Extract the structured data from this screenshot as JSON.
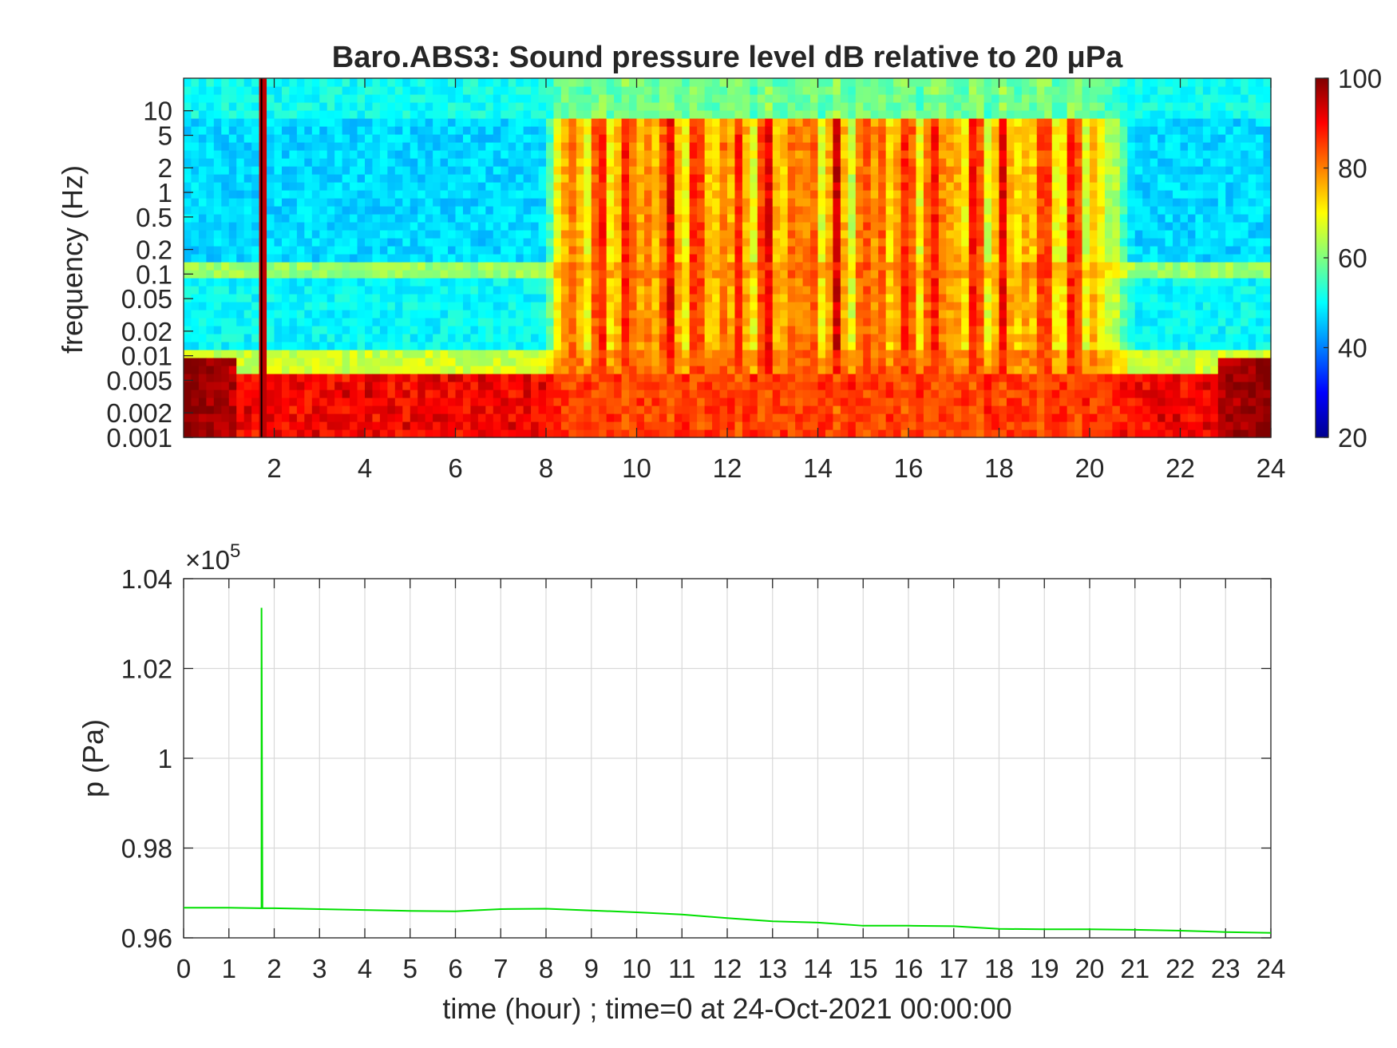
{
  "chart_data": [
    {
      "type": "heatmap",
      "title": "Baro.ABS3: Sound pressure level dB relative to 20 μPa",
      "ylabel": "frequency (Hz)",
      "xlabel": "",
      "x_ticks": [
        "2",
        "4",
        "6",
        "8",
        "10",
        "12",
        "14",
        "16",
        "18",
        "20",
        "22",
        "24"
      ],
      "y_ticks": [
        "10",
        "5",
        "2",
        "1",
        "0.5",
        "0.2",
        "0.1",
        "0.05",
        "0.02",
        "0.01",
        "0.005",
        "0.002",
        "0.001"
      ],
      "y_scale": "log",
      "xlim": [
        0,
        24
      ],
      "ylim": [
        0.001,
        25
      ],
      "colorbar": {
        "colormap": "jet",
        "range": [
          20,
          100
        ],
        "ticks": [
          "100",
          "80",
          "60",
          "40",
          "20"
        ]
      },
      "features": {
        "quiet_hours": [
          [
            0,
            8.2
          ],
          [
            20.5,
            24
          ]
        ],
        "active_hours": [
          8.2,
          20.5
        ],
        "impulse_hour": 1.72
      }
    },
    {
      "type": "line",
      "xlabel": "time (hour) ; time=0 at 24-Oct-2021 00:00:00",
      "ylabel": "p (Pa)",
      "exponent_label": "×10",
      "exponent_power": "5",
      "grid": true,
      "xlim": [
        0,
        24
      ],
      "ylim": [
        0.96,
        1.04
      ],
      "x_ticks": [
        "0",
        "1",
        "2",
        "3",
        "4",
        "5",
        "6",
        "7",
        "8",
        "9",
        "10",
        "11",
        "12",
        "13",
        "14",
        "15",
        "16",
        "17",
        "18",
        "19",
        "20",
        "21",
        "22",
        "23",
        "24"
      ],
      "y_ticks": [
        "1.04",
        "1.02",
        "1",
        "0.98",
        "0.96"
      ],
      "series": [
        {
          "color": "#00e000",
          "x": [
            0,
            1,
            1.7,
            1.72,
            1.72,
            1.74,
            2,
            3,
            4,
            5,
            6,
            7,
            8,
            9,
            10,
            11,
            12,
            13,
            14,
            15,
            16,
            17,
            18,
            19,
            20,
            21,
            22,
            23,
            24
          ],
          "y": [
            0.9667,
            0.9667,
            0.9666,
            0.9666,
            1.0335,
            0.9666,
            0.9666,
            0.9664,
            0.9662,
            0.966,
            0.9659,
            0.9664,
            0.9665,
            0.9661,
            0.9657,
            0.9652,
            0.9644,
            0.9637,
            0.9634,
            0.9627,
            0.9627,
            0.9626,
            0.962,
            0.9619,
            0.9619,
            0.9618,
            0.9616,
            0.9613,
            0.9611
          ]
        }
      ]
    }
  ]
}
